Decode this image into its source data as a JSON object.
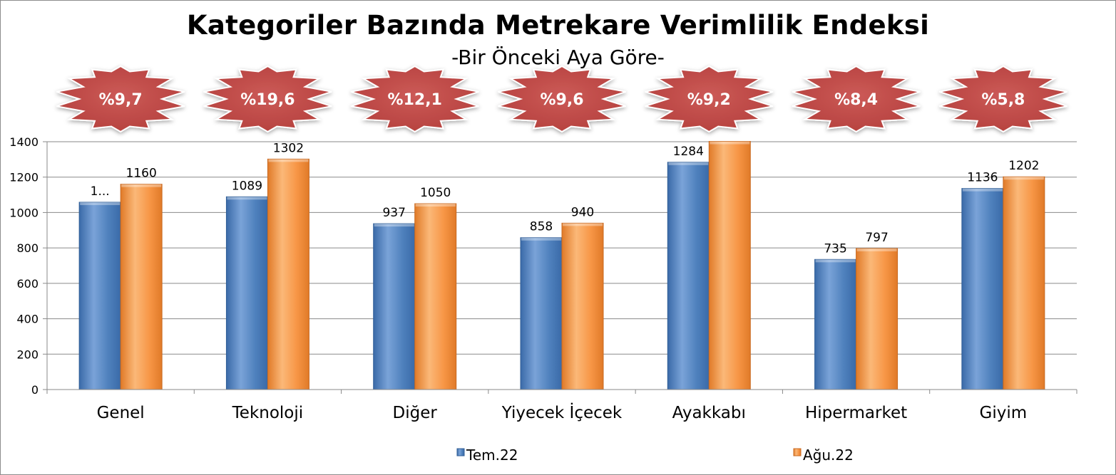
{
  "chart_data": {
    "type": "bar",
    "title": "Kategoriler Bazında Metrekare Verimlilik Endeksi",
    "subtitle": "-Bir Önceki Aya Göre-",
    "categories": [
      "Genel",
      "Teknoloji",
      "Diğer",
      "Yiyecek İçecek",
      "Ayakkabı",
      "Hipermarket",
      "Giyim"
    ],
    "series": [
      {
        "name": "Tem.22",
        "values": [
          1058,
          1089,
          937,
          858,
          1284,
          735,
          1136
        ],
        "labels": [
          "1...",
          "1089",
          "937",
          "858",
          "1284",
          "735",
          "1136"
        ],
        "color": "#4f81bd"
      },
      {
        "name": "Ağu.22",
        "values": [
          1160,
          1302,
          1050,
          940,
          1402,
          797,
          1202
        ],
        "labels": [
          "1160",
          "1302",
          "1050",
          "940",
          "",
          "797",
          "1202"
        ],
        "color": "#f79646"
      }
    ],
    "change_badges": [
      "%9,7",
      "%19,6",
      "%12,1",
      "%9,6",
      "%9,2",
      "%8,4",
      "%5,8"
    ],
    "badge_color": "#c0504d",
    "ylim": [
      0,
      1400
    ],
    "yticks": [
      "0",
      "200",
      "400",
      "600",
      "800",
      "1000",
      "1200",
      "1400"
    ],
    "grid": true,
    "legend": "bottom"
  }
}
